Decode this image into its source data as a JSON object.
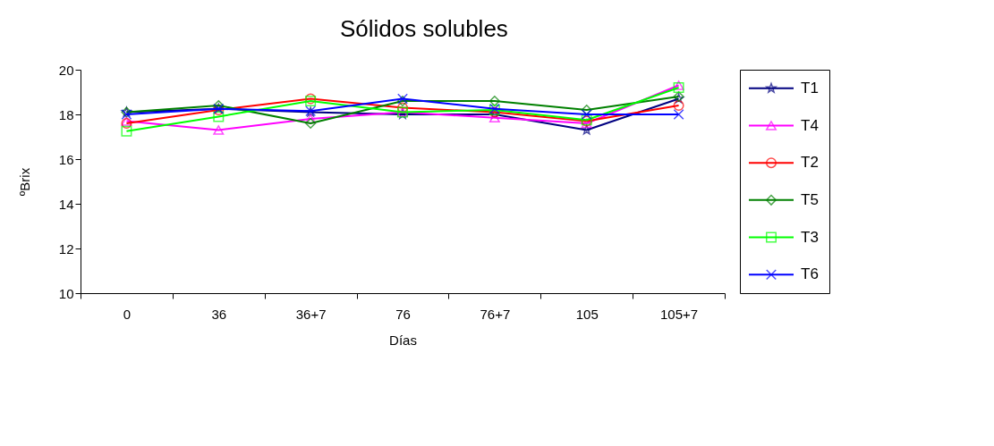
{
  "chart_data": {
    "type": "line",
    "title": "Sólidos solubles",
    "xlabel": "Días",
    "ylabel": "ºBrix",
    "categories": [
      "0",
      "36",
      "36+7",
      "76",
      "76+7",
      "105",
      "105+7"
    ],
    "ylim": [
      10,
      20
    ],
    "yticks": [
      10,
      12,
      14,
      16,
      18,
      20
    ],
    "grid": false,
    "legend": "right",
    "series": [
      {
        "name": "T1",
        "color": "#000080",
        "marker": "star",
        "values": [
          18.1,
          18.25,
          18.1,
          18.0,
          18.0,
          17.3,
          18.7
        ]
      },
      {
        "name": "T4",
        "color": "#ff00ff",
        "marker": "triangle",
        "values": [
          17.7,
          17.3,
          17.8,
          18.1,
          17.85,
          17.6,
          19.3
        ]
      },
      {
        "name": "T2",
        "color": "#ff0000",
        "marker": "circle",
        "values": [
          17.6,
          18.2,
          18.7,
          18.3,
          18.1,
          17.7,
          18.4
        ]
      },
      {
        "name": "T5",
        "color": "#008000",
        "marker": "diamond",
        "values": [
          18.1,
          18.4,
          17.6,
          18.6,
          18.6,
          18.2,
          18.8
        ]
      },
      {
        "name": "T3",
        "color": "#00ff00",
        "marker": "square",
        "values": [
          17.25,
          17.9,
          18.6,
          18.1,
          18.2,
          17.75,
          19.2
        ]
      },
      {
        "name": "T6",
        "color": "#0000ff",
        "marker": "cross",
        "values": [
          18.0,
          18.25,
          18.15,
          18.7,
          18.25,
          18.0,
          18.0
        ]
      }
    ]
  }
}
